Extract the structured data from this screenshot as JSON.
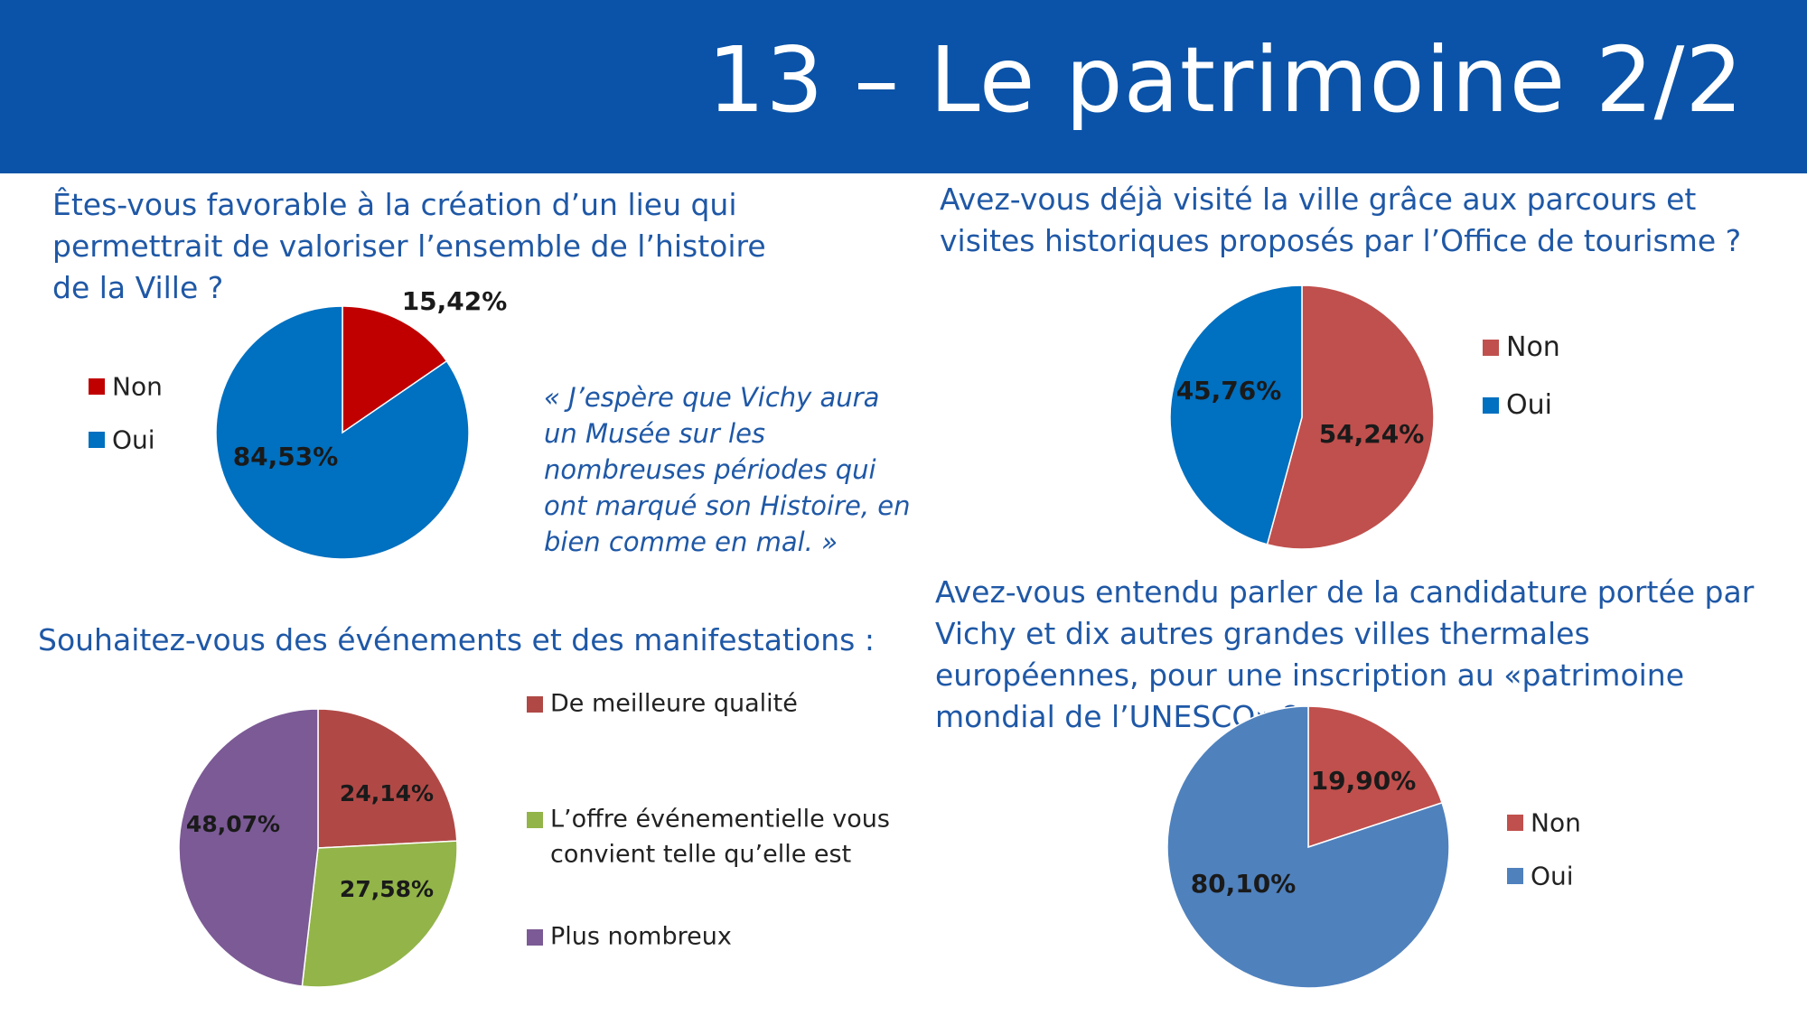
{
  "header": {
    "title": "13 – Le patrimoine 2/2"
  },
  "questions": {
    "q1": "Êtes-vous favorable à la création d’un lieu qui permettrait de valoriser l’ensemble de l’histoire de la Ville ?",
    "q2": "Avez-vous déjà visité la ville grâce aux parcours et visites historiques proposés par l’Office de tourisme ?",
    "q3": "Souhaitez-vous des événements et des manifestations :",
    "q4": "Avez-vous entendu parler de la candidature portée par Vichy et dix autres grandes villes thermales européennes, pour une inscription au «patrimoine mondial de l’UNESCO» ?"
  },
  "quote": "« J’espère que Vichy aura un Musée sur les nombreuses périodes qui ont marqué son Histoire, en bien comme en mal. »",
  "chart_data": [
    {
      "type": "pie",
      "categories": [
        "Non",
        "Oui"
      ],
      "values": [
        15.42,
        84.53
      ],
      "labels": [
        "15,42%",
        "84,53%"
      ],
      "colors": [
        "#c00000",
        "#0070c0"
      ],
      "legend": "left"
    },
    {
      "type": "pie",
      "categories": [
        "Non",
        "Oui"
      ],
      "values": [
        54.24,
        45.76
      ],
      "labels": [
        "54,24%",
        "45,76%"
      ],
      "colors": [
        "#c0504d",
        "#0070c0"
      ],
      "legend": "right"
    },
    {
      "type": "pie",
      "categories": [
        "De meilleure qualité",
        "L’offre événementielle vous convient telle qu’elle est",
        "Plus nombreux"
      ],
      "values": [
        24.14,
        27.58,
        48.07
      ],
      "labels": [
        "24,14%",
        "27,58%",
        "48,07%"
      ],
      "colors": [
        "#b04946",
        "#92b449",
        "#7b5a95"
      ],
      "legend": "right"
    },
    {
      "type": "pie",
      "categories": [
        "Non",
        "Oui"
      ],
      "values": [
        19.9,
        80.1
      ],
      "labels": [
        "19,90%",
        "80,10%"
      ],
      "colors": [
        "#c0504d",
        "#4f81bd"
      ],
      "legend": "right"
    }
  ]
}
